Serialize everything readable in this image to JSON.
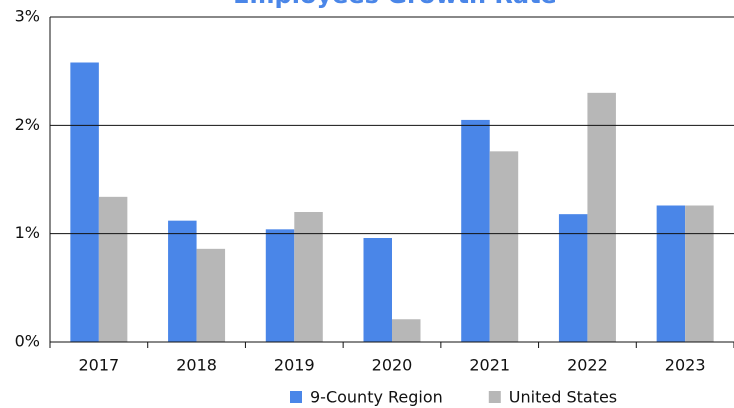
{
  "chart_data": {
    "type": "bar",
    "title": "Employees Growth Rate",
    "title_color": "#4a86e8",
    "categories": [
      "2017",
      "2018",
      "2019",
      "2020",
      "2021",
      "2022",
      "2023"
    ],
    "series": [
      {
        "name": "9-County Region",
        "color": "#4a86e8",
        "values": [
          2.58,
          1.12,
          1.04,
          0.96,
          2.05,
          1.18,
          1.26
        ]
      },
      {
        "name": "United States",
        "color": "#b7b7b7",
        "values": [
          1.34,
          0.86,
          1.2,
          0.21,
          1.76,
          2.3,
          1.26
        ]
      }
    ],
    "ylim": [
      0,
      3
    ],
    "yticks": [
      {
        "value": 0,
        "label": "0%"
      },
      {
        "value": 1,
        "label": "1%"
      },
      {
        "value": 2,
        "label": "2%"
      },
      {
        "value": 3,
        "label": "3%"
      }
    ],
    "grid": true,
    "legend": "bottom"
  }
}
